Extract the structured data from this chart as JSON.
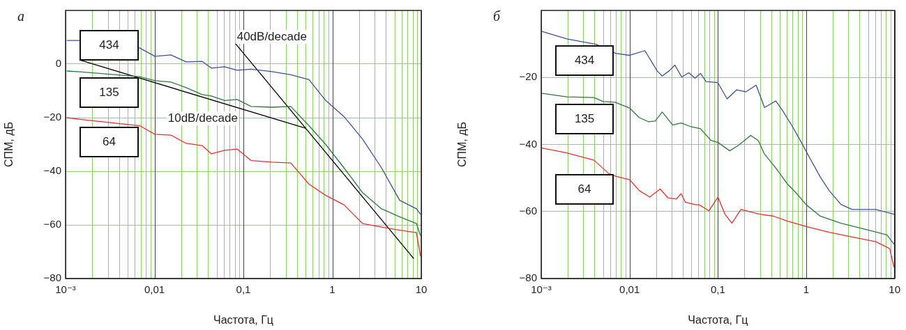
{
  "chart_data": [
    {
      "type": "line",
      "title": "а",
      "xlabel": "Частота, Гц",
      "ylabel": "СПМ, дБ",
      "log": "x",
      "grid": true,
      "legend": false,
      "marker": "none",
      "xlim": [
        0.001,
        10
      ],
      "xticks": [
        {
          "value": 0.001,
          "label": "10⁻³"
        },
        {
          "value": 0.01,
          "label": "0,01"
        },
        {
          "value": 0.1,
          "label": "0,1"
        },
        {
          "value": 1,
          "label": "1"
        },
        {
          "value": 10,
          "label": "10"
        }
      ],
      "ylim": [
        -80,
        20
      ],
      "yticks": [
        {
          "value": -80,
          "label": "−80"
        },
        {
          "value": -60,
          "label": "−60"
        },
        {
          "value": -40,
          "label": "−40"
        },
        {
          "value": -20,
          "label": "−20"
        },
        {
          "value": 0,
          "label": "0"
        }
      ],
      "series": [
        {
          "name": "434",
          "color": "#3a4fa0",
          "x": [
            0.00104,
            0.00144,
            0.0068,
            0.0101,
            0.0153,
            0.0227,
            0.0344,
            0.0436,
            0.0614,
            0.0849,
            0.122,
            0.21,
            0.341,
            0.546,
            0.842,
            1.35,
            2.19,
            3.57,
            5.71,
            8.82,
            9.8
          ],
          "values": [
            8.8,
            8.8,
            6.0,
            2.9,
            3.4,
            0.8,
            1.0,
            -1.5,
            -1,
            -2.3,
            -1.9,
            -2.8,
            -4,
            -5.8,
            -13.6,
            -19.6,
            -28,
            -38.7,
            -50.8,
            -54,
            -56
          ]
        },
        {
          "name": "135",
          "color": "#2a7a3a",
          "x": [
            0.00104,
            0.00144,
            0.0068,
            0.0101,
            0.0153,
            0.0227,
            0.0344,
            0.0436,
            0.0614,
            0.0849,
            0.122,
            0.21,
            0.341,
            0.546,
            0.842,
            1.35,
            2.19,
            3.57,
            5.71,
            8.82,
            9.8
          ],
          "values": [
            -2.6,
            -2.9,
            -4.7,
            -6.2,
            -6.7,
            -8.8,
            -11.4,
            -11.9,
            -13.6,
            -13.2,
            -15.8,
            -16.1,
            -15.8,
            -23,
            -30,
            -38.7,
            -48,
            -54,
            -57,
            -59.5,
            -64
          ]
        },
        {
          "name": "64",
          "color": "#e8302a",
          "x": [
            0.00104,
            0.00144,
            0.0068,
            0.0101,
            0.0153,
            0.0227,
            0.0344,
            0.0436,
            0.0614,
            0.0849,
            0.122,
            0.21,
            0.341,
            0.546,
            0.842,
            1.35,
            2.19,
            3.57,
            5.71,
            8.82,
            9.8
          ],
          "values": [
            -20,
            -20.6,
            -23,
            -26.2,
            -26.5,
            -29.6,
            -30.4,
            -33.5,
            -32.2,
            -31.7,
            -36,
            -36.6,
            -36.9,
            -44.8,
            -49,
            -52.5,
            -59.5,
            -60.8,
            -62,
            -62.9,
            -71.6
          ]
        },
        {
          "color": "#000000",
          "x": [
            0.00144,
            0.499
          ],
          "values": [
            1.5,
            -23.9
          ]
        },
        {
          "color": "#000000",
          "x": [
            0.082,
            8.2
          ],
          "values": [
            7.5,
            -72.5
          ]
        }
      ],
      "annotations": [
        "40dB/decade",
        "10dB/decade"
      ]
    },
    {
      "type": "line",
      "title": "б",
      "xlabel": "Частота, Гц",
      "ylabel": "СПМ, дБ",
      "log": "x",
      "grid": true,
      "legend": false,
      "marker": "none",
      "xlim": [
        0.001,
        10
      ],
      "xticks": [
        {
          "value": 0.001,
          "label": "10⁻³"
        },
        {
          "value": 0.01,
          "label": "0,01"
        },
        {
          "value": 0.1,
          "label": "0,1"
        },
        {
          "value": 1,
          "label": "1"
        },
        {
          "value": 10,
          "label": "10"
        }
      ],
      "ylim": [
        -80,
        0
      ],
      "yticks": [
        {
          "value": -80,
          "label": "−80"
        },
        {
          "value": -60,
          "label": "−60"
        },
        {
          "value": -40,
          "label": "−40"
        },
        {
          "value": -20,
          "label": "−20"
        }
      ],
      "series": [
        {
          "name": "434",
          "color": "#3a4fa0",
          "x": [
            0.001,
            0.00195,
            0.00418,
            0.00697,
            0.01,
            0.0149,
            0.0206,
            0.0234,
            0.0281,
            0.0325,
            0.039,
            0.0467,
            0.055,
            0.0635,
            0.0734,
            0.1,
            0.127,
            0.163,
            0.207,
            0.271,
            0.337,
            0.451,
            0.54,
            0.696,
            0.881,
            1.11,
            1.44,
            1.82,
            2.47,
            3.31,
            6.12,
            9.8
          ],
          "values": [
            -6.2,
            -8.5,
            -10.1,
            -12.8,
            -13.4,
            -12,
            -18.1,
            -19.6,
            -18,
            -16.3,
            -19.9,
            -18.6,
            -20.2,
            -18.8,
            -21.2,
            -21.6,
            -26.4,
            -23.7,
            -24.3,
            -22.3,
            -29,
            -27,
            -29.9,
            -34.6,
            -39.4,
            -44.3,
            -49.7,
            -53.8,
            -57.9,
            -59.4,
            -59.4,
            -60.8
          ]
        },
        {
          "name": "135",
          "color": "#2a7a3a",
          "x": [
            0.001,
            0.00195,
            0.00396,
            0.00502,
            0.00684,
            0.01,
            0.0129,
            0.0163,
            0.0195,
            0.0234,
            0.0308,
            0.0383,
            0.0484,
            0.0635,
            0.0834,
            0.1,
            0.136,
            0.172,
            0.235,
            0.286,
            0.337,
            0.451,
            0.613,
            0.776,
            1,
            1.44,
            2.47,
            4.5,
            8.18,
            9.8
          ],
          "values": [
            -24.7,
            -25.8,
            -26,
            -27.2,
            -27.4,
            -29.1,
            -32,
            -33.2,
            -33,
            -30.3,
            -34.2,
            -33.6,
            -34.6,
            -35.3,
            -38.8,
            -39.4,
            -41.9,
            -40.2,
            -37.3,
            -38.8,
            -42.9,
            -47,
            -51.8,
            -54.6,
            -58,
            -61.4,
            -63.5,
            -65.2,
            -67,
            -69.7
          ]
        },
        {
          "name": "64",
          "color": "#e8302a",
          "x": [
            0.001,
            0.00195,
            0.00396,
            0.00581,
            0.00697,
            0.01,
            0.0129,
            0.0169,
            0.0222,
            0.0271,
            0.0337,
            0.0383,
            0.0427,
            0.056,
            0.0613,
            0.079,
            0.1,
            0.12,
            0.144,
            0.182,
            0.297,
            0.427,
            0.613,
            1,
            1.82,
            3.31,
            6.12,
            8.8,
            9.8
          ],
          "values": [
            -41,
            -42.5,
            -44.7,
            -48.7,
            -49.5,
            -50.5,
            -53.8,
            -55.7,
            -53.3,
            -55.9,
            -56.3,
            -54.7,
            -57.2,
            -58,
            -58,
            -59.8,
            -55.7,
            -60.8,
            -63.5,
            -59.4,
            -60.8,
            -61.4,
            -62.9,
            -64.5,
            -66.2,
            -67.6,
            -69,
            -71.1,
            -76.5
          ]
        }
      ]
    }
  ]
}
